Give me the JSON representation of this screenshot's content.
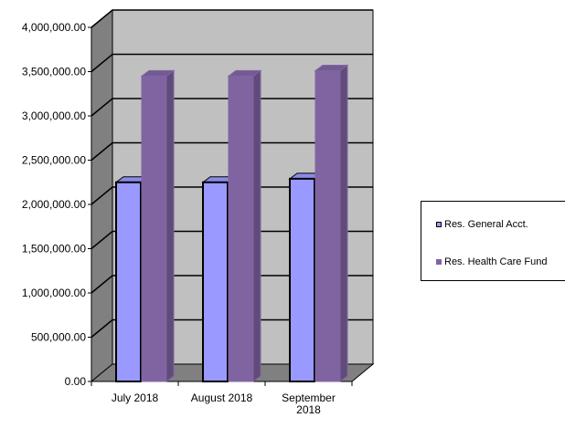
{
  "chart_data": {
    "type": "bar",
    "categories": [
      "July 2018",
      "August 2018",
      "September 2018"
    ],
    "category_lines": [
      [
        "July 2018"
      ],
      [
        "August 2018"
      ],
      [
        "September",
        "2018"
      ]
    ],
    "series": [
      {
        "name": "Res. General Acct.",
        "values": [
          2250000,
          2250000,
          2290000
        ],
        "color": "#9999ff"
      },
      {
        "name": "Res. Health Care Fund",
        "values": [
          3450000,
          3450000,
          3510000
        ],
        "color": "#8064a2"
      }
    ],
    "ylim": [
      0,
      4000000
    ],
    "yticks": [
      0,
      500000,
      1000000,
      1500000,
      2000000,
      2500000,
      3000000,
      3500000,
      4000000
    ],
    "ytick_labels": [
      "0.00",
      "500,000.00",
      "1,000,000.00",
      "1,500,000.00",
      "2,000,000.00",
      "2,500,000.00",
      "3,000,000.00",
      "3,500,000.00",
      "4,000,000.00"
    ],
    "grid": true,
    "legend_position": "right",
    "three_d": true,
    "wall_color": "#c0c0c0",
    "floor_color": "#808080"
  }
}
